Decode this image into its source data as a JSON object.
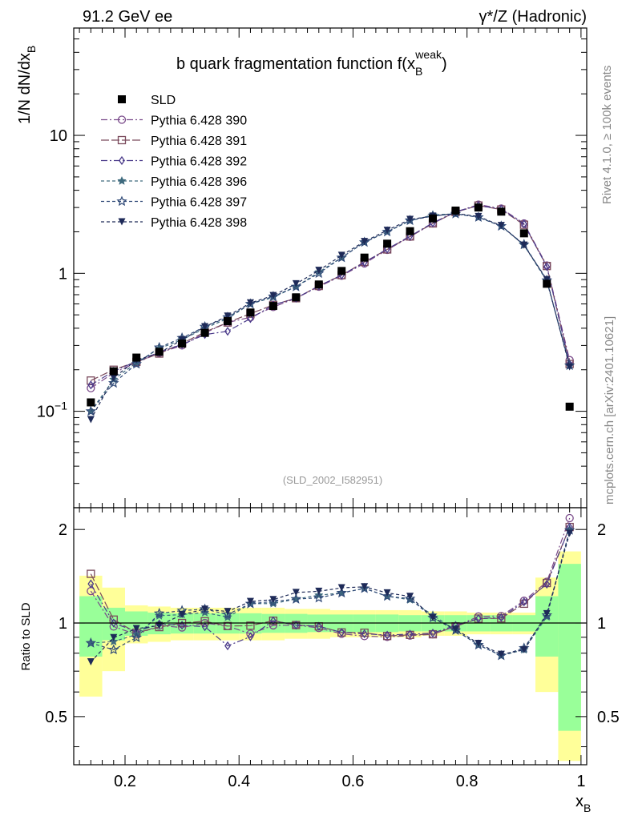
{
  "header": {
    "left": "91.2 GeV ee",
    "right": "γ*/Z (Hadronic)",
    "side_top": "Rivet 4.1.0, ≥ 100k events",
    "side_bottom": "mcplots.cern.ch [arXiv:2401.10621]",
    "analysis_id": "(SLD_2002_I582951)"
  },
  "chart_data": {
    "type": "line",
    "title": "b quark fragmentation function f(x_B^weak)",
    "title_main": "b quark fragmentation function f(x",
    "title_sub": "B",
    "title_sup": "weak",
    "title_close": ")",
    "ylabel_main": "1/N  dN/dx",
    "ylabel_sub": "B",
    "xlabel": "x",
    "xlabel_sub": "B",
    "ratio_ylabel": "Ratio to SLD",
    "xlim": [
      0.11,
      1.01
    ],
    "ylim": [
      0.02,
      60
    ],
    "ratio_ylim": [
      0.35,
      2.35
    ],
    "x_ticks": [
      "0.2",
      "0.4",
      "0.6",
      "0.8",
      "1"
    ],
    "y_ticks": [
      "10",
      "1",
      "10−1"
    ],
    "ratio_ticks": [
      "2",
      "1",
      "0.5"
    ],
    "x": [
      0.14,
      0.18,
      0.22,
      0.26,
      0.3,
      0.34,
      0.38,
      0.42,
      0.46,
      0.5,
      0.54,
      0.58,
      0.62,
      0.66,
      0.7,
      0.74,
      0.78,
      0.82,
      0.86,
      0.9,
      0.94,
      0.98
    ],
    "data": {
      "name": "SLD",
      "values": [
        0.116,
        0.195,
        0.245,
        0.27,
        0.31,
        0.37,
        0.45,
        0.52,
        0.58,
        0.67,
        0.83,
        1.04,
        1.3,
        1.64,
        2.02,
        2.5,
        2.85,
        3.0,
        2.8,
        1.95,
        0.84,
        0.108
      ],
      "band_inner": [
        0.22,
        0.12,
        0.09,
        0.08,
        0.075,
        0.075,
        0.075,
        0.075,
        0.07,
        0.07,
        0.065,
        0.065,
        0.065,
        0.065,
        0.06,
        0.06,
        0.06,
        0.06,
        0.06,
        0.06,
        0.22,
        0.55
      ],
      "band_outer": [
        0.42,
        0.3,
        0.14,
        0.13,
        0.12,
        0.12,
        0.12,
        0.12,
        0.12,
        0.11,
        0.11,
        0.1,
        0.1,
        0.1,
        0.1,
        0.09,
        0.09,
        0.08,
        0.08,
        0.08,
        0.4,
        0.7
      ]
    },
    "series": [
      {
        "name": "Pythia 6.428 390",
        "color": "#7a4a8a",
        "marker": "circle",
        "dash": "8,3,2,3",
        "values": [
          0.147,
          0.19,
          0.225,
          0.265,
          0.3,
          0.37,
          0.44,
          0.48,
          0.57,
          0.66,
          0.8,
          0.96,
          1.18,
          1.48,
          1.84,
          2.3,
          2.78,
          3.15,
          2.95,
          2.3,
          1.14,
          0.235
        ]
      },
      {
        "name": "Pythia 6.428 391",
        "color": "#7a4a5c",
        "marker": "square",
        "dash": "10,3",
        "values": [
          0.167,
          0.2,
          0.228,
          0.262,
          0.31,
          0.375,
          0.44,
          0.51,
          0.59,
          0.66,
          0.81,
          0.97,
          1.21,
          1.49,
          1.85,
          2.3,
          2.78,
          3.1,
          2.9,
          2.25,
          1.13,
          0.22
        ]
      },
      {
        "name": "Pythia 6.428 392",
        "color": "#4a3a8a",
        "marker": "diamond",
        "dash": "8,3,2,3",
        "values": [
          0.155,
          0.195,
          0.23,
          0.268,
          0.305,
          0.36,
          0.38,
          0.47,
          0.59,
          0.66,
          0.81,
          0.97,
          1.2,
          1.5,
          1.86,
          2.32,
          2.8,
          3.1,
          2.92,
          2.28,
          1.12,
          0.22
        ]
      },
      {
        "name": "Pythia 6.428 396",
        "color": "#3e6a7e",
        "marker": "star",
        "dash": "4,3",
        "values": [
          0.1,
          0.17,
          0.225,
          0.285,
          0.33,
          0.4,
          0.47,
          0.6,
          0.67,
          0.8,
          1.02,
          1.3,
          1.68,
          2.0,
          2.4,
          2.65,
          2.7,
          2.55,
          2.2,
          1.6,
          0.88,
          0.215
        ]
      },
      {
        "name": "Pythia 6.428 397",
        "color": "#304a78",
        "marker": "star-open",
        "dash": "4,3",
        "values": [
          0.1,
          0.16,
          0.22,
          0.29,
          0.34,
          0.41,
          0.48,
          0.6,
          0.68,
          0.8,
          1.0,
          1.3,
          1.68,
          2.0,
          2.42,
          2.6,
          2.7,
          2.55,
          2.2,
          1.62,
          0.89,
          0.215
        ]
      },
      {
        "name": "Pythia 6.428 398",
        "color": "#1e2a58",
        "marker": "triangle",
        "dash": "4,3",
        "values": [
          0.087,
          0.175,
          0.235,
          0.265,
          0.33,
          0.41,
          0.49,
          0.61,
          0.69,
          0.84,
          1.05,
          1.35,
          1.7,
          2.05,
          2.46,
          2.6,
          2.72,
          2.58,
          2.22,
          1.6,
          0.9,
          0.21
        ]
      }
    ]
  }
}
